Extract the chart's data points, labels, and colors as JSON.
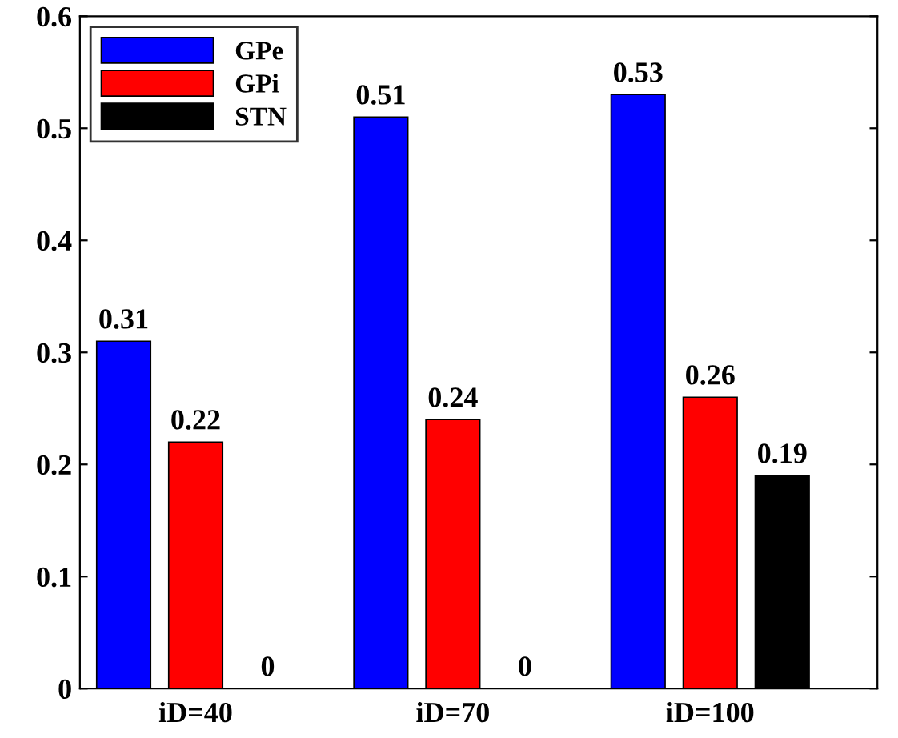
{
  "chart_data": {
    "type": "bar",
    "categories": [
      "iD=40",
      "iD=70",
      "iD=100"
    ],
    "series": [
      {
        "name": "GPe",
        "color": "#0000ff",
        "values": [
          0.31,
          0.51,
          0.53
        ]
      },
      {
        "name": "GPi",
        "color": "#ff0000",
        "values": [
          0.22,
          0.24,
          0.26
        ]
      },
      {
        "name": "STN",
        "color": "#000000",
        "values": [
          0,
          0,
          0.19
        ]
      }
    ],
    "ylim": [
      0,
      0.6
    ],
    "yticks": [
      0,
      0.1,
      0.2,
      0.3,
      0.4,
      0.5,
      0.6
    ],
    "data_labels": true,
    "legend": "top left",
    "grid": false
  }
}
